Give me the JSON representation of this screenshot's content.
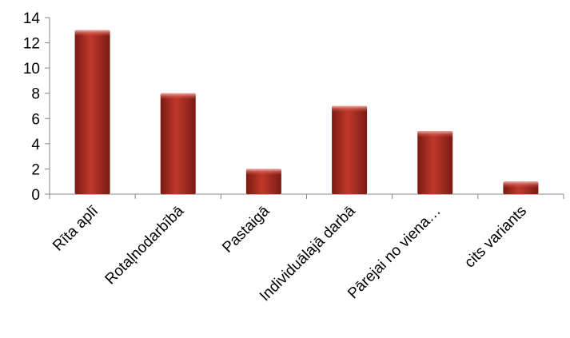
{
  "chart_data": {
    "type": "bar",
    "categories": [
      "Rīta aplī",
      "Rotaļnodarbībā",
      "Pastaigā",
      "Individuālajā darbā",
      "Pārejai no viena…",
      "cits variants"
    ],
    "values": [
      13,
      8,
      2,
      7,
      5,
      1
    ],
    "title": "",
    "xlabel": "",
    "ylabel": "",
    "ylim": [
      0,
      14
    ],
    "yticks": [
      0,
      2,
      4,
      6,
      8,
      10,
      12,
      14
    ],
    "grid": false,
    "legend": "none",
    "bar_color": "#c0392b",
    "bar_highlight": "#e57b73",
    "bar_shadow": "#7a1a14"
  }
}
